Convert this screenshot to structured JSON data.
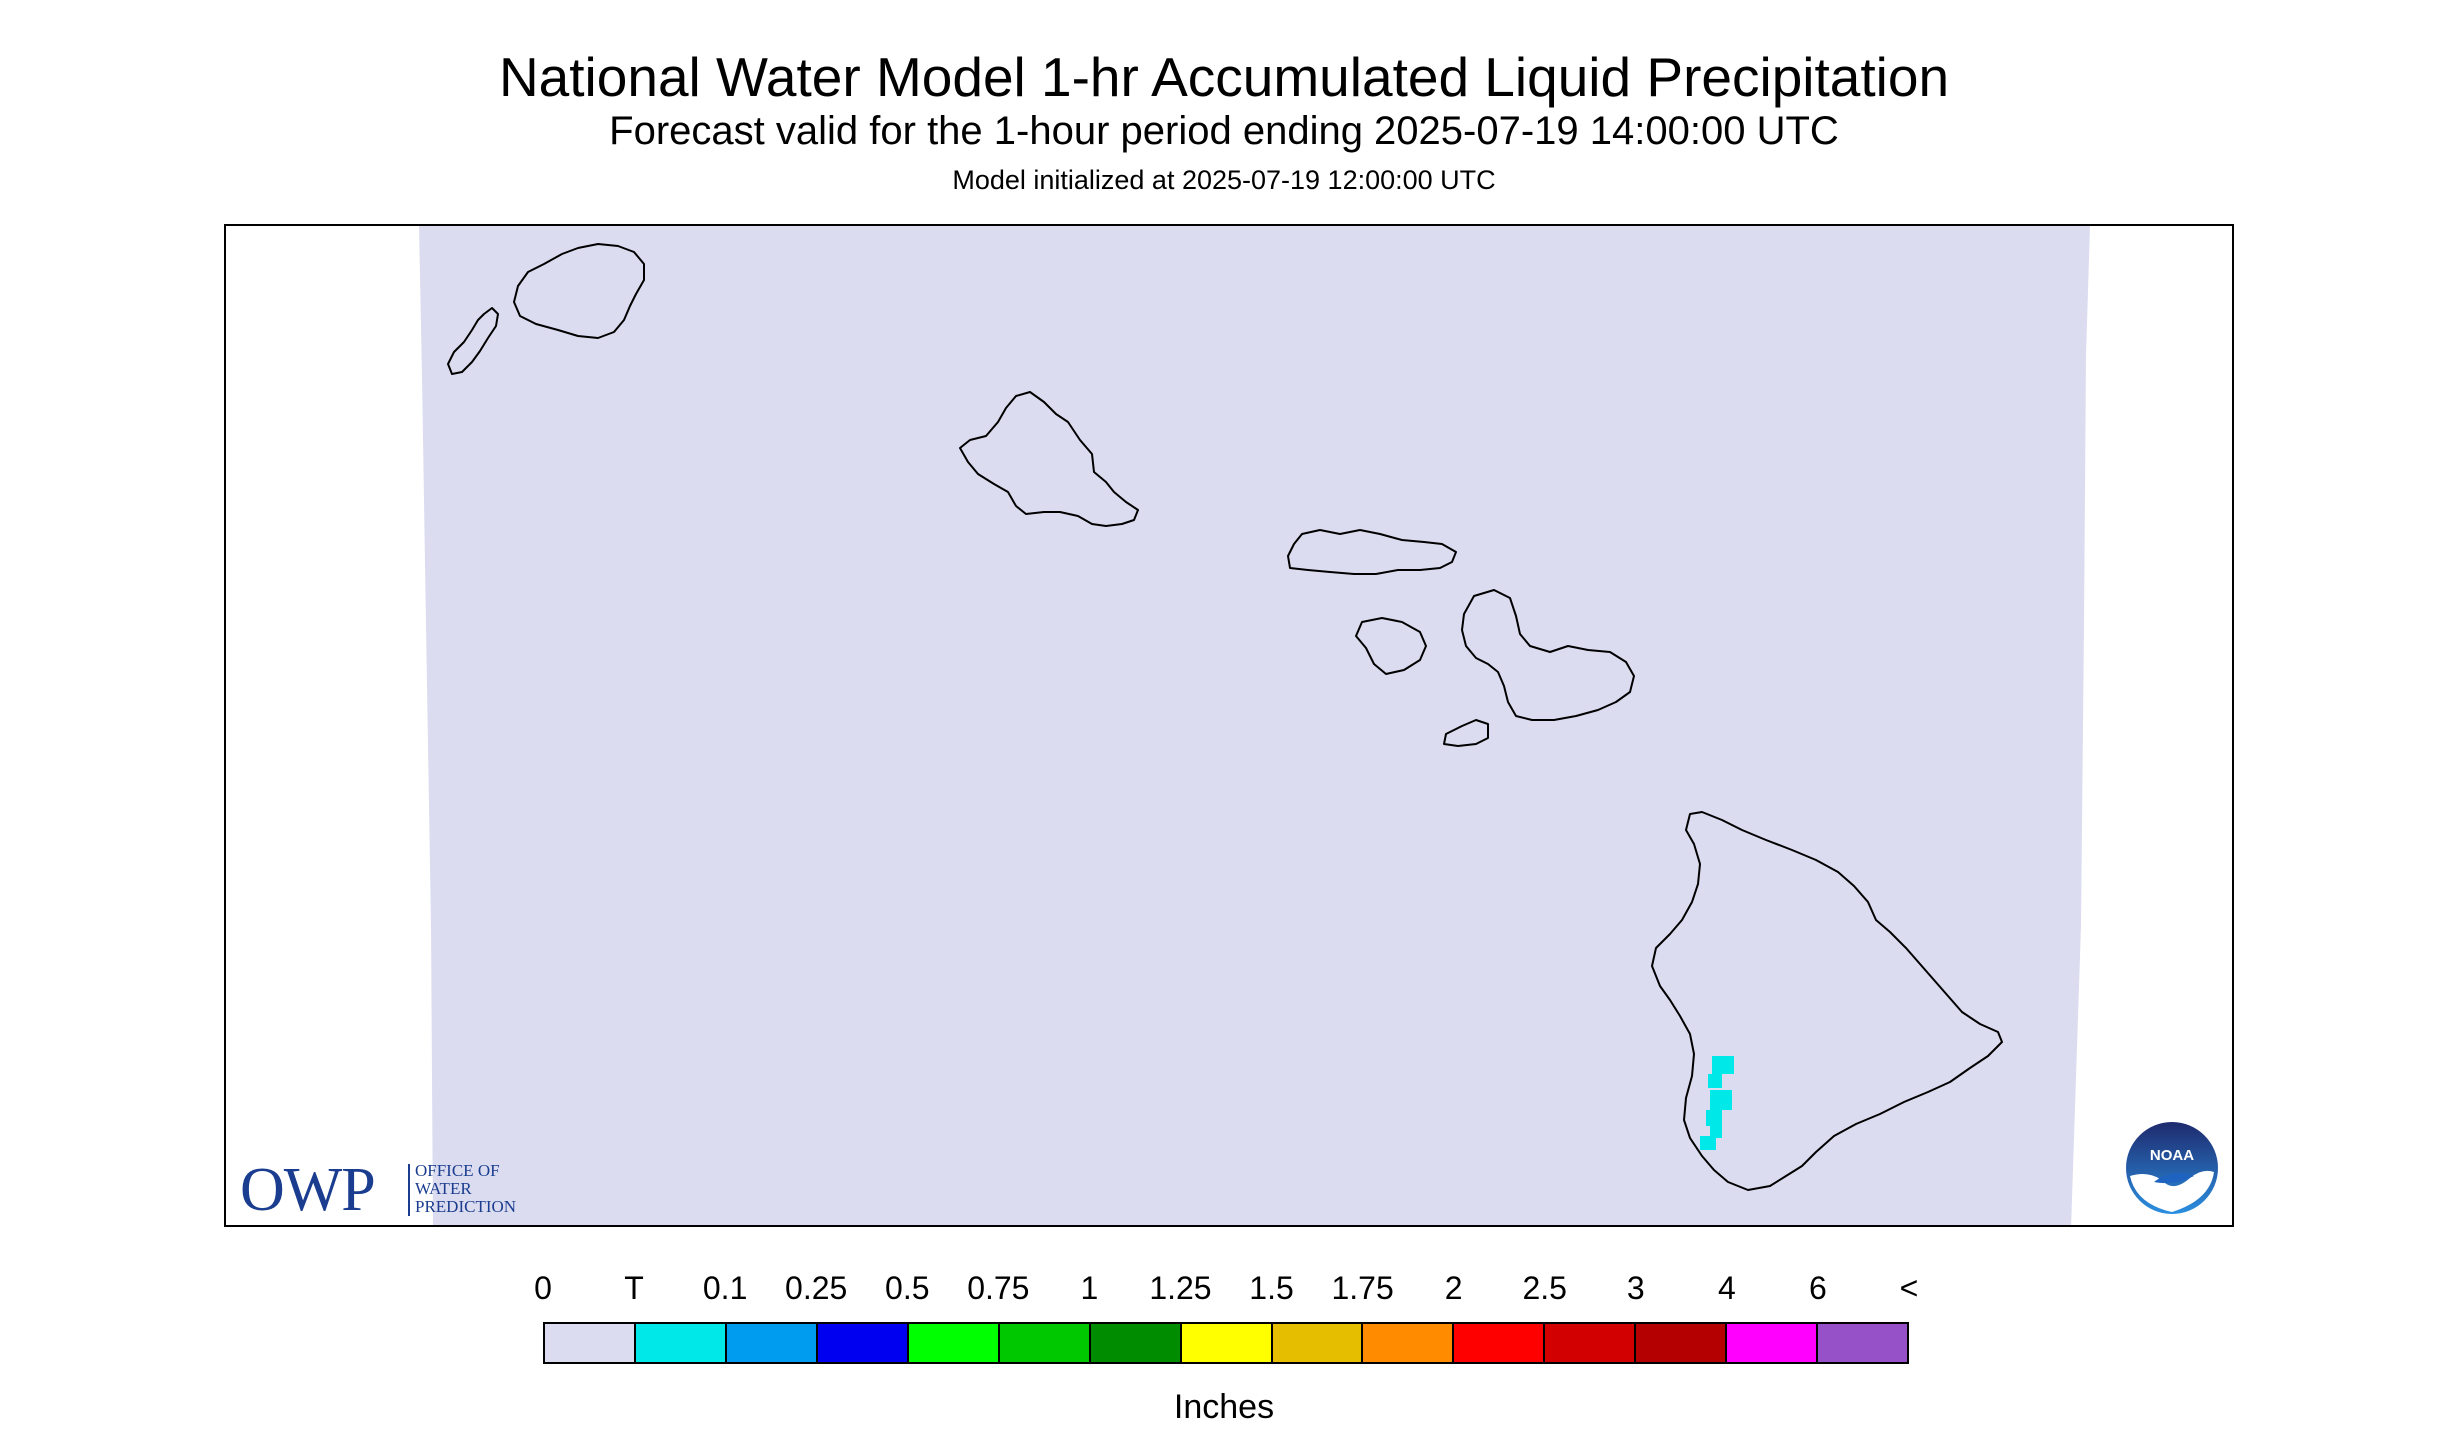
{
  "header": {
    "title": "National Water Model 1-hr Accumulated Liquid Precipitation",
    "subtitle": "Forecast valid for the 1-hour period ending 2025-07-19 14:00:00 UTC",
    "init_line": "Model initialized at 2025-07-19 12:00:00 UTC"
  },
  "map": {
    "region": "Hawaii",
    "background_color": "#dcdcf0",
    "coastline_color": "#000000",
    "precip_color": "#00e8e8",
    "precip_category": "T"
  },
  "logos": {
    "owp": {
      "main": "OWP",
      "line1": "OFFICE OF",
      "line2": "WATER",
      "line3": "PREDICTION",
      "color": "#1a3d8f"
    },
    "noaa": {
      "text": "NOAA",
      "icon": "noaa-logo"
    }
  },
  "legend": {
    "labels": [
      "0",
      "T",
      "0.1",
      "0.25",
      "0.5",
      "0.75",
      "1",
      "1.25",
      "1.5",
      "1.75",
      "2",
      "2.5",
      "3",
      "4",
      "6",
      "<"
    ],
    "colors": [
      "#dcdcf0",
      "#00e8e8",
      "#009cf0",
      "#0000f0",
      "#00ff00",
      "#00c800",
      "#008c00",
      "#ffff00",
      "#e6be00",
      "#ff8c00",
      "#ff0000",
      "#d20000",
      "#b40000",
      "#ff00ff",
      "#9650c8"
    ],
    "unit": "Inches"
  }
}
